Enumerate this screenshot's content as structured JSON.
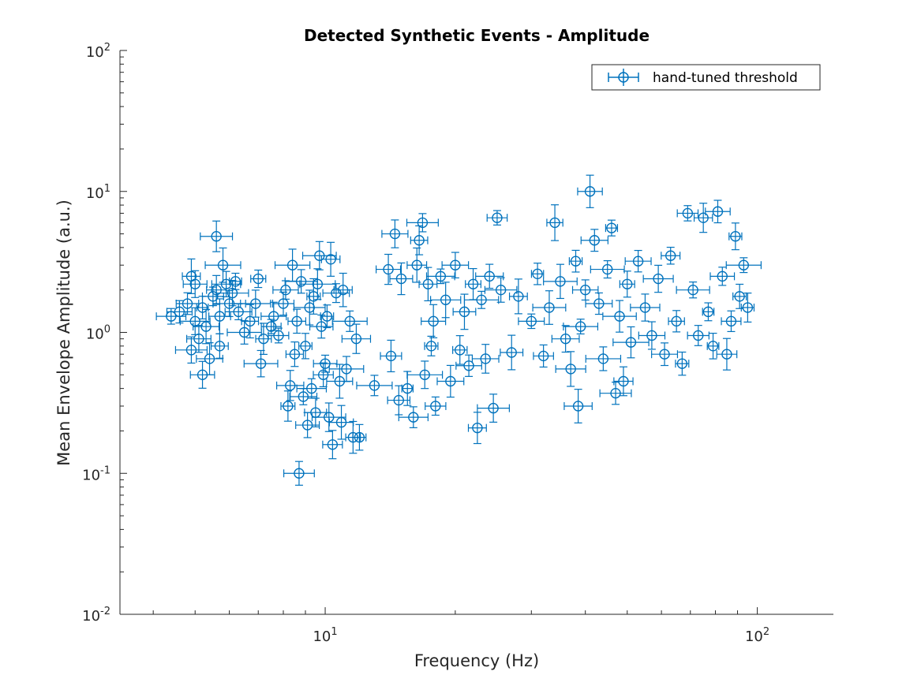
{
  "chart_data": {
    "type": "scatter",
    "title": "Detected Synthetic Events - Amplitude",
    "xlabel": "Frequency (Hz)",
    "ylabel": "Mean Envelope Amplitude (a.u.)",
    "xscale": "log",
    "yscale": "log",
    "xlim": [
      3.35,
      150
    ],
    "ylim": [
      0.01,
      100
    ],
    "x_ticks": [
      {
        "base": "10",
        "exp": "1",
        "value": 10
      },
      {
        "base": "10",
        "exp": "2",
        "value": 100
      }
    ],
    "y_ticks": [
      {
        "base": "10",
        "exp": "-2",
        "value": 0.01
      },
      {
        "base": "10",
        "exp": "-1",
        "value": 0.1
      },
      {
        "base": "10",
        "exp": "0",
        "value": 1
      },
      {
        "base": "10",
        "exp": "1",
        "value": 10
      },
      {
        "base": "10",
        "exp": "2",
        "value": 100
      }
    ],
    "grid": false,
    "legend_position": "top-right",
    "series": [
      {
        "name": "hand-tuned threshold",
        "color": "#0072BD",
        "marker": "circle-open",
        "error_bars": "x and y",
        "points": [
          [
            4.4,
            1.3
          ],
          [
            4.6,
            1.4
          ],
          [
            4.8,
            1.6
          ],
          [
            4.9,
            2.5
          ],
          [
            4.9,
            0.75
          ],
          [
            5.0,
            1.2
          ],
          [
            5.0,
            2.2
          ],
          [
            5.1,
            0.9
          ],
          [
            5.2,
            0.5
          ],
          [
            5.2,
            1.5
          ],
          [
            5.3,
            1.1
          ],
          [
            5.4,
            0.65
          ],
          [
            5.5,
            1.8
          ],
          [
            5.6,
            4.8
          ],
          [
            5.6,
            2.0
          ],
          [
            5.7,
            1.3
          ],
          [
            5.7,
            0.8
          ],
          [
            5.8,
            3.0
          ],
          [
            5.9,
            2.2
          ],
          [
            6.0,
            1.6
          ],
          [
            6.1,
            1.9
          ],
          [
            6.2,
            2.3
          ],
          [
            6.3,
            1.4
          ],
          [
            6.5,
            1.0
          ],
          [
            6.7,
            1.2
          ],
          [
            6.9,
            1.6
          ],
          [
            7.0,
            2.4
          ],
          [
            7.1,
            0.6
          ],
          [
            7.2,
            0.9
          ],
          [
            7.5,
            1.1
          ],
          [
            7.6,
            1.3
          ],
          [
            7.8,
            0.95
          ],
          [
            8.0,
            1.6
          ],
          [
            8.1,
            2.0
          ],
          [
            8.2,
            0.3
          ],
          [
            8.3,
            0.42
          ],
          [
            8.4,
            3.0
          ],
          [
            8.5,
            0.7
          ],
          [
            8.6,
            1.2
          ],
          [
            8.7,
            0.1
          ],
          [
            8.8,
            2.3
          ],
          [
            8.9,
            0.35
          ],
          [
            9.0,
            0.8
          ],
          [
            9.1,
            0.22
          ],
          [
            9.2,
            1.5
          ],
          [
            9.3,
            0.4
          ],
          [
            9.4,
            1.8
          ],
          [
            9.5,
            0.27
          ],
          [
            9.6,
            2.2
          ],
          [
            9.7,
            3.5
          ],
          [
            9.8,
            1.1
          ],
          [
            9.9,
            0.5
          ],
          [
            10.0,
            0.6
          ],
          [
            10.1,
            1.3
          ],
          [
            10.2,
            0.25
          ],
          [
            10.3,
            3.3
          ],
          [
            10.4,
            0.16
          ],
          [
            10.6,
            1.9
          ],
          [
            10.8,
            0.45
          ],
          [
            10.9,
            0.23
          ],
          [
            11.0,
            2.0
          ],
          [
            11.2,
            0.55
          ],
          [
            11.4,
            1.2
          ],
          [
            11.6,
            0.18
          ],
          [
            11.8,
            0.9
          ],
          [
            12.0,
            0.18
          ],
          [
            13.0,
            0.42
          ],
          [
            14.0,
            2.8
          ],
          [
            14.2,
            0.68
          ],
          [
            14.5,
            5.0
          ],
          [
            14.8,
            0.33
          ],
          [
            15.0,
            2.4
          ],
          [
            15.5,
            0.4
          ],
          [
            16.0,
            0.25
          ],
          [
            16.3,
            3.0
          ],
          [
            16.5,
            4.5
          ],
          [
            16.8,
            6.0
          ],
          [
            17.0,
            0.5
          ],
          [
            17.3,
            2.2
          ],
          [
            17.6,
            0.8
          ],
          [
            17.8,
            1.2
          ],
          [
            18.0,
            0.3
          ],
          [
            18.5,
            2.5
          ],
          [
            19.0,
            1.7
          ],
          [
            19.5,
            0.45
          ],
          [
            20.0,
            3.0
          ],
          [
            20.5,
            0.75
          ],
          [
            21.0,
            1.4
          ],
          [
            21.5,
            0.58
          ],
          [
            22.0,
            2.2
          ],
          [
            22.5,
            0.21
          ],
          [
            23.0,
            1.7
          ],
          [
            23.5,
            0.65
          ],
          [
            24.0,
            2.5
          ],
          [
            24.5,
            0.29
          ],
          [
            25.0,
            6.5
          ],
          [
            25.5,
            2.0
          ],
          [
            27.0,
            0.72
          ],
          [
            28.0,
            1.8
          ],
          [
            30.0,
            1.2
          ],
          [
            31.0,
            2.6
          ],
          [
            32.0,
            0.68
          ],
          [
            33.0,
            1.5
          ],
          [
            34.0,
            6.0
          ],
          [
            35.0,
            2.3
          ],
          [
            36.0,
            0.9
          ],
          [
            37.0,
            0.55
          ],
          [
            38.0,
            3.2
          ],
          [
            38.5,
            0.3
          ],
          [
            39.0,
            1.1
          ],
          [
            40.0,
            2.0
          ],
          [
            41.0,
            10.0
          ],
          [
            42.0,
            4.5
          ],
          [
            43.0,
            1.6
          ],
          [
            44.0,
            0.65
          ],
          [
            45.0,
            2.8
          ],
          [
            46.0,
            5.5
          ],
          [
            47.0,
            0.37
          ],
          [
            48.0,
            1.3
          ],
          [
            49.0,
            0.45
          ],
          [
            50.0,
            2.2
          ],
          [
            51.0,
            0.85
          ],
          [
            53.0,
            3.2
          ],
          [
            55.0,
            1.5
          ],
          [
            57.0,
            0.95
          ],
          [
            59.0,
            2.4
          ],
          [
            61.0,
            0.7
          ],
          [
            63.0,
            3.5
          ],
          [
            65.0,
            1.2
          ],
          [
            67.0,
            0.6
          ],
          [
            69.0,
            7.0
          ],
          [
            71.0,
            2.0
          ],
          [
            73.0,
            0.95
          ],
          [
            75.0,
            6.5
          ],
          [
            77.0,
            1.4
          ],
          [
            79.0,
            0.8
          ],
          [
            81.0,
            7.2
          ],
          [
            83.0,
            2.5
          ],
          [
            85.0,
            0.7
          ],
          [
            87.0,
            1.2
          ],
          [
            89.0,
            4.8
          ],
          [
            91.0,
            1.8
          ],
          [
            93.0,
            3.0
          ],
          [
            95.0,
            1.5
          ]
        ]
      }
    ]
  }
}
